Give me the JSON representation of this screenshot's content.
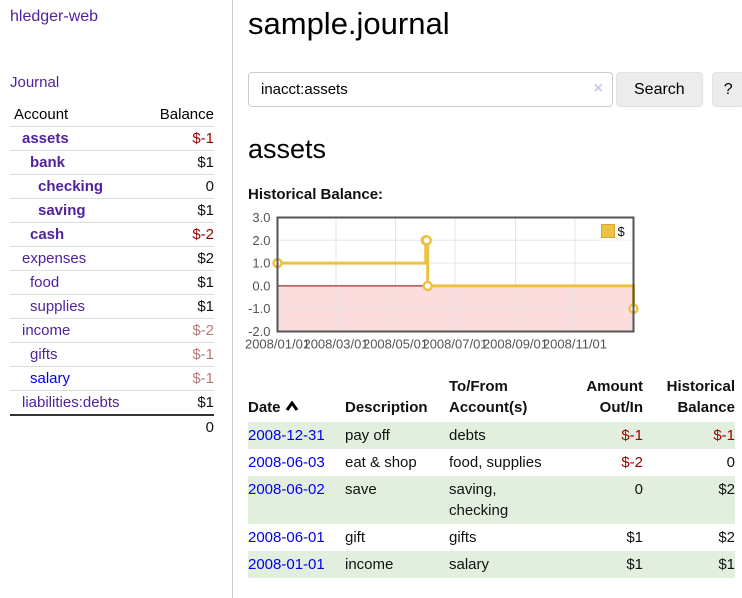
{
  "sidebar": {
    "app_title": "hledger-web",
    "journal_link": "Journal",
    "accounts_header": {
      "account": "Account",
      "balance": "Balance"
    },
    "accounts": [
      {
        "name": "assets",
        "level": 1,
        "bold": true,
        "balance": "$-1",
        "balance_style": "neg",
        "link_color": "purple"
      },
      {
        "name": "bank",
        "level": 2,
        "bold": true,
        "balance": "$1",
        "balance_style": "normal",
        "link_color": "purple"
      },
      {
        "name": "checking",
        "level": 3,
        "bold": true,
        "balance": "0",
        "balance_style": "normal",
        "link_color": "purple"
      },
      {
        "name": "saving",
        "level": 3,
        "bold": true,
        "balance": "$1",
        "balance_style": "normal",
        "link_color": "purple"
      },
      {
        "name": "cash",
        "level": 2,
        "bold": true,
        "balance": "$-2",
        "balance_style": "neg",
        "link_color": "purple"
      },
      {
        "name": "expenses",
        "level": 1,
        "bold": false,
        "balance": "$2",
        "balance_style": "normal",
        "link_color": "purple"
      },
      {
        "name": "food",
        "level": 2,
        "bold": false,
        "balance": "$1",
        "balance_style": "normal",
        "link_color": "purple"
      },
      {
        "name": "supplies",
        "level": 2,
        "bold": false,
        "balance": "$1",
        "balance_style": "normal",
        "link_color": "purple"
      },
      {
        "name": "income",
        "level": 1,
        "bold": false,
        "balance": "$-2",
        "balance_style": "negdim",
        "link_color": "purple"
      },
      {
        "name": "gifts",
        "level": 2,
        "bold": false,
        "balance": "$-1",
        "balance_style": "negdim",
        "link_color": "purple"
      },
      {
        "name": "salary",
        "level": 2,
        "bold": false,
        "balance": "$-1",
        "balance_style": "negdim",
        "link_color": "blue"
      },
      {
        "name": "liabilities:debts",
        "level": 1,
        "bold": false,
        "balance": "$1",
        "balance_style": "normal",
        "link_color": "purple"
      }
    ],
    "total": "0"
  },
  "header": {
    "title": "sample.journal"
  },
  "search": {
    "value": "inacct:assets",
    "clear_icon": "×",
    "search_label": "Search",
    "help_label": "?"
  },
  "main": {
    "account_heading": "assets",
    "chart_label": "Historical Balance:"
  },
  "chart_data": {
    "type": "line",
    "step": true,
    "title": "Historical Balance:",
    "series": [
      {
        "name": "$",
        "color": "#edc240",
        "points": [
          [
            "2008-01-01",
            1
          ],
          [
            "2008-06-01",
            2
          ],
          [
            "2008-06-02",
            2
          ],
          [
            "2008-06-03",
            0
          ],
          [
            "2008-12-31",
            -1
          ]
        ]
      }
    ],
    "x_domain": [
      "2008-01-01",
      "2008-12-31"
    ],
    "x_tick_dates": [
      "2008-01-01",
      "2008-03-01",
      "2008-05-01",
      "2008-07-01",
      "2008-09-01",
      "2008-11-01"
    ],
    "x_tick_labels": [
      "2008/01/01",
      "2008/03/01",
      "2008/05/01",
      "2008/07/01",
      "2008/09/01",
      "2008/11/01"
    ],
    "y_ticks": [
      -2,
      -1,
      0,
      1,
      2,
      3
    ],
    "y_tick_labels": [
      "-2.0",
      "-1.0",
      "0.0",
      "1.0",
      "2.0",
      "3.0"
    ],
    "ylim": [
      -2,
      3
    ],
    "grid": true,
    "legend": {
      "label": "$",
      "position": "top-right"
    },
    "colors": {
      "grid": "#e6e6e6",
      "border": "#545454",
      "zero_line": "#8b0000",
      "negative_region": "#fbdddd",
      "legend_swatch_border": "#d4a938"
    }
  },
  "transactions": {
    "columns": [
      {
        "label": "Date",
        "sortable": true,
        "sort": "asc",
        "align": "left"
      },
      {
        "label": "Description",
        "align": "left"
      },
      {
        "label": "To/From Account(s)",
        "align": "left"
      },
      {
        "label": "Amount Out/In",
        "align": "right"
      },
      {
        "label": "Historical Balance",
        "align": "right"
      }
    ],
    "rows": [
      {
        "date": "2008-12-31",
        "description": "pay off",
        "accounts": "debts",
        "amount": "$-1",
        "amount_negative": true,
        "balance": "$-1",
        "balance_negative": true
      },
      {
        "date": "2008-06-03",
        "description": "eat & shop",
        "accounts": "food, supplies",
        "amount": "$-2",
        "amount_negative": true,
        "balance": "0",
        "balance_negative": false
      },
      {
        "date": "2008-06-02",
        "description": "save",
        "accounts": "saving, checking",
        "amount": "0",
        "amount_negative": false,
        "balance": "$2",
        "balance_negative": false
      },
      {
        "date": "2008-06-01",
        "description": "gift",
        "accounts": "gifts",
        "amount": "$1",
        "amount_negative": false,
        "balance": "$2",
        "balance_negative": false
      },
      {
        "date": "2008-01-01",
        "description": "income",
        "accounts": "salary",
        "amount": "$1",
        "amount_negative": false,
        "balance": "$1",
        "balance_negative": false
      }
    ]
  },
  "colors": {
    "link_purple": "#52219f",
    "link_blue": "#0000ee",
    "negative": "#990000",
    "negative_dim": "#b97979",
    "row_stripe_green": "#e2efde",
    "series_gold": "#edc240"
  }
}
